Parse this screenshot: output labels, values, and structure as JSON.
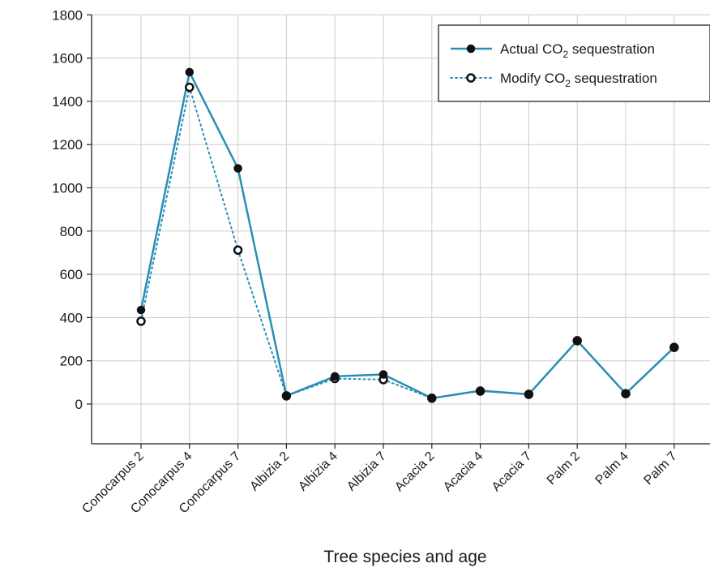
{
  "chart_data": {
    "type": "line",
    "xlabel": "Tree species and age",
    "ylabel": "",
    "ylim": [
      -180,
      1800
    ],
    "yticks": [
      0,
      200,
      400,
      600,
      800,
      1000,
      1200,
      1400,
      1600,
      1800
    ],
    "ytick_labels": [
      "0",
      "200",
      "400",
      "600",
      "800",
      "1000",
      "1200",
      "1400",
      "1600",
      "1800"
    ],
    "grid": true,
    "legend_position": "top-right",
    "categories": [
      "Conocarpus 2",
      "Conocarpus 4",
      "Conocarpus 7",
      "Albizia 2",
      "Albizia 4",
      "Albizia 7",
      "Acacia 2",
      "Acacia 4",
      "Acacia 7",
      "Palm 2",
      "Palm 4",
      "Palm 7"
    ],
    "series": [
      {
        "name": "Actual CO2 sequestration",
        "name_prefix": "Actual CO",
        "name_sub": "2",
        "name_suffix": " sequestration",
        "color": "#2a8db8",
        "line_style": "solid",
        "marker": "filled",
        "values": [
          435,
          1535,
          1090,
          38,
          128,
          137,
          27,
          62,
          45,
          293,
          48,
          262
        ]
      },
      {
        "name": "Modify CO2 sequestration",
        "name_prefix": "Modify CO",
        "name_sub": "2",
        "name_suffix": " sequestration",
        "color": "#2a8db8",
        "line_style": "dotted",
        "marker": "open",
        "values": [
          383,
          1465,
          712,
          38,
          118,
          113,
          27,
          60,
          45,
          293,
          48,
          262
        ]
      }
    ]
  }
}
